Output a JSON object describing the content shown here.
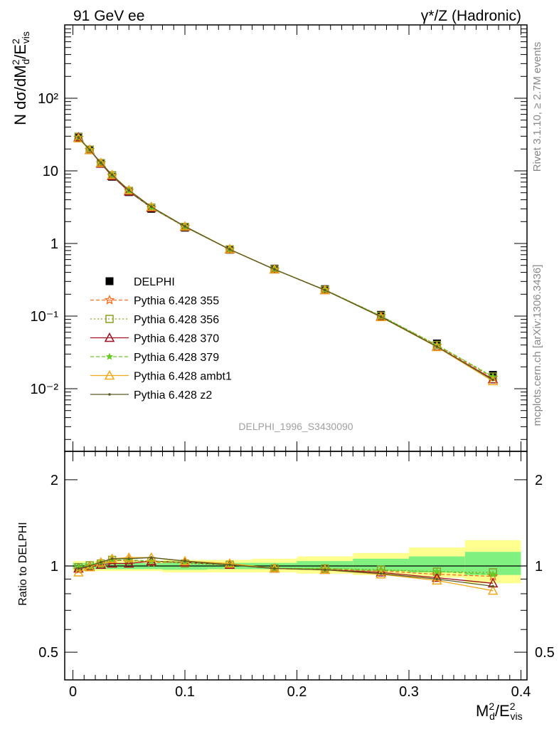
{
  "header": {
    "left_label": "91 GeV ee",
    "right_label": "γ*/Z (Hadronic)"
  },
  "side_labels": {
    "rivet": "Rivet 3.1.10, ≥ 2.7M events",
    "mcplots": "mcplots.cern.ch [arXiv:1306.3436]"
  },
  "analysis_label": "DELPHI_1996_S3430090",
  "main_ylabel": "N dσ/dM_d²/E_vis²",
  "ratio_ylabel": "Ratio to DELPHI",
  "xlabel": "M_d²/E_vis²",
  "colors": {
    "DELPHI": "#000000",
    "355": "#ff6a1a",
    "356": "#8aa024",
    "370": "#a01020",
    "379": "#66cc22",
    "ambt1": "#f0a818",
    "z2": "#5a5a24",
    "band_inner": "#80f080",
    "band_outer": "#ffff90"
  },
  "chart_data": [
    {
      "type": "line",
      "name": "main",
      "y_scale": "log",
      "xlim": [
        0,
        0.4
      ],
      "ylim": [
        0.001,
        1000
      ],
      "x_ticks": [
        "0",
        "0.1",
        "0.2",
        "0.3",
        "0.4"
      ],
      "y_ticks": [
        "10⁻²",
        "10⁻¹",
        "1",
        "10",
        "10²"
      ],
      "x": [
        0.005,
        0.015,
        0.025,
        0.035,
        0.05,
        0.07,
        0.1,
        0.14,
        0.18,
        0.225,
        0.275,
        0.325,
        0.375
      ],
      "series": [
        {
          "name": "DELPHI",
          "key": "DELPHI",
          "values": [
            29.5,
            19.5,
            12.5,
            8.3,
            5.1,
            3.0,
            1.65,
            0.82,
            0.45,
            0.235,
            0.104,
            0.042,
            0.0155
          ]
        },
        {
          "name": "Pythia 6.428 355",
          "key": "355",
          "values": [
            28.6,
            19.4,
            12.8,
            8.6,
            5.35,
            3.1,
            1.7,
            0.83,
            0.44,
            0.23,
            0.1,
            0.039,
            0.0142
          ]
        },
        {
          "name": "Pythia 6.428 356",
          "key": "356",
          "values": [
            29.2,
            19.6,
            12.8,
            8.7,
            5.3,
            3.12,
            1.69,
            0.83,
            0.44,
            0.23,
            0.101,
            0.04,
            0.0147
          ]
        },
        {
          "name": "Pythia 6.428 370",
          "key": "370",
          "values": [
            28.9,
            19.4,
            12.6,
            8.5,
            5.2,
            3.12,
            1.7,
            0.83,
            0.44,
            0.228,
            0.099,
            0.038,
            0.0135
          ]
        },
        {
          "name": "Pythia 6.428 379",
          "key": "379",
          "values": [
            29.2,
            19.6,
            12.9,
            8.7,
            5.35,
            3.12,
            1.7,
            0.83,
            0.44,
            0.23,
            0.1,
            0.04,
            0.0145
          ]
        },
        {
          "name": "Pythia 6.428 ambt1",
          "key": "ambt1",
          "values": [
            28.0,
            19.3,
            12.9,
            8.8,
            5.45,
            3.2,
            1.72,
            0.835,
            0.44,
            0.228,
            0.097,
            0.0375,
            0.0127
          ]
        },
        {
          "name": "Pythia 6.428 z2",
          "key": "z2",
          "values": [
            28.9,
            19.5,
            12.9,
            8.8,
            5.4,
            3.2,
            1.72,
            0.83,
            0.44,
            0.228,
            0.098,
            0.038,
            0.0132
          ]
        }
      ]
    },
    {
      "type": "line",
      "name": "ratio",
      "y_scale": "log",
      "xlim": [
        0,
        0.4
      ],
      "ylim": [
        0.38,
        2.3
      ],
      "x_ticks": [
        "0",
        "0.1",
        "0.2",
        "0.3",
        "0.4"
      ],
      "y_ticks": [
        "0.5",
        "1",
        "2"
      ],
      "x": [
        0.005,
        0.015,
        0.025,
        0.035,
        0.05,
        0.07,
        0.1,
        0.14,
        0.18,
        0.225,
        0.275,
        0.325,
        0.375
      ],
      "band": {
        "x_edges": [
          0,
          0.01,
          0.02,
          0.03,
          0.04,
          0.06,
          0.08,
          0.12,
          0.16,
          0.2,
          0.25,
          0.3,
          0.35,
          0.4
        ],
        "inner": [
          0.975,
          1.025,
          0.975,
          1.025,
          0.975,
          1.025,
          0.975,
          1.025,
          0.975,
          1.025,
          0.975,
          1.025,
          0.97,
          1.03,
          0.975,
          1.025,
          0.975,
          1.025,
          0.97,
          1.04,
          0.96,
          1.06,
          0.95,
          1.08,
          0.93,
          1.12
        ],
        "outer": [
          0.96,
          1.04,
          0.96,
          1.04,
          0.96,
          1.04,
          0.96,
          1.04,
          0.96,
          1.04,
          0.96,
          1.04,
          0.95,
          1.05,
          0.95,
          1.05,
          0.95,
          1.06,
          0.94,
          1.08,
          0.93,
          1.11,
          0.91,
          1.16,
          0.87,
          1.23
        ]
      },
      "series": [
        {
          "name": "Pythia 6.428 355",
          "key": "355",
          "values": [
            0.97,
            0.995,
            1.02,
            1.04,
            1.05,
            1.03,
            1.03,
            1.01,
            0.98,
            0.975,
            0.96,
            0.935,
            0.92
          ]
        },
        {
          "name": "Pythia 6.428 356",
          "key": "356",
          "values": [
            0.99,
            1.005,
            1.02,
            1.05,
            1.04,
            1.04,
            1.02,
            1.01,
            0.98,
            0.98,
            0.97,
            0.955,
            0.95
          ]
        },
        {
          "name": "Pythia 6.428 370",
          "key": "370",
          "values": [
            0.98,
            0.995,
            1.01,
            1.02,
            1.02,
            1.04,
            1.03,
            1.01,
            0.98,
            0.97,
            0.95,
            0.91,
            0.87
          ]
        },
        {
          "name": "Pythia 6.428 379",
          "key": "379",
          "values": [
            0.99,
            1.005,
            1.03,
            1.05,
            1.05,
            1.04,
            1.03,
            1.01,
            0.98,
            0.98,
            0.965,
            0.955,
            0.935
          ]
        },
        {
          "name": "Pythia 6.428 ambt1",
          "key": "ambt1",
          "values": [
            0.95,
            0.99,
            1.03,
            1.06,
            1.07,
            1.07,
            1.04,
            1.02,
            0.98,
            0.97,
            0.935,
            0.89,
            0.82
          ]
        },
        {
          "name": "Pythia 6.428 z2",
          "key": "z2",
          "values": [
            0.98,
            1.0,
            1.03,
            1.06,
            1.06,
            1.07,
            1.04,
            1.01,
            0.98,
            0.97,
            0.94,
            0.9,
            0.85
          ]
        }
      ]
    }
  ],
  "legend": {
    "placement": "left-middle",
    "entries": [
      {
        "key": "DELPHI",
        "label": "DELPHI"
      },
      {
        "key": "355",
        "label": "Pythia 6.428 355"
      },
      {
        "key": "356",
        "label": "Pythia 6.428 356"
      },
      {
        "key": "370",
        "label": "Pythia 6.428 370"
      },
      {
        "key": "379",
        "label": "Pythia 6.428 379"
      },
      {
        "key": "ambt1",
        "label": "Pythia 6.428 ambt1"
      },
      {
        "key": "z2",
        "label": "Pythia 6.428 z2"
      }
    ]
  }
}
